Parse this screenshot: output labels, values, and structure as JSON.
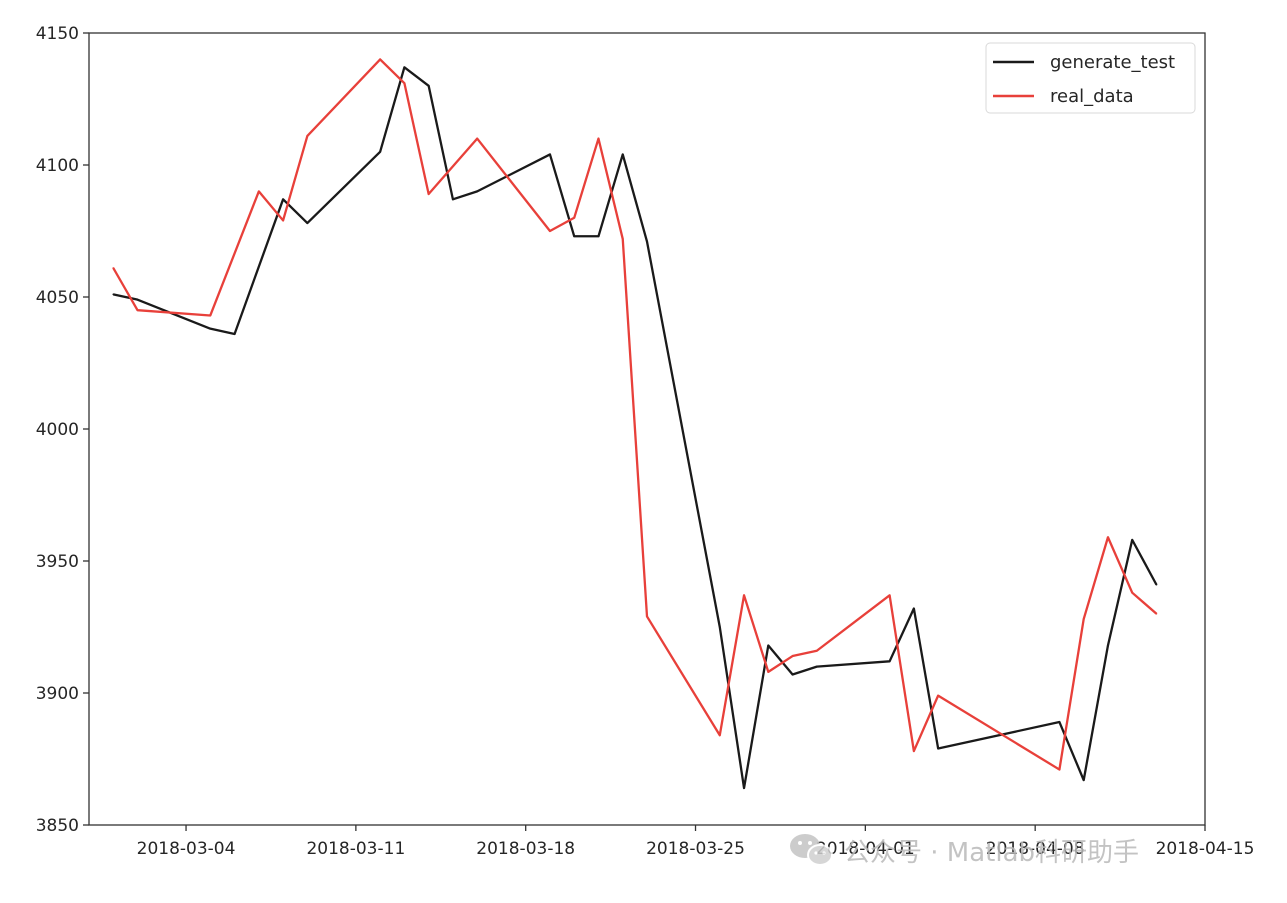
{
  "chart_data": {
    "type": "line",
    "x_type": "date",
    "xlim": [
      "2018-02-28",
      "2018-04-15"
    ],
    "ylim": [
      3850,
      4150
    ],
    "x_ticks": [
      "2018-03-04",
      "2018-03-11",
      "2018-03-18",
      "2018-03-25",
      "2018-04-01",
      "2018-04-08",
      "2018-04-15"
    ],
    "y_ticks": [
      3850,
      3900,
      3950,
      4000,
      4050,
      4100,
      4150
    ],
    "legend_position": "top-right",
    "grid": false,
    "title": "",
    "xlabel": "",
    "ylabel": "",
    "series": [
      {
        "name": "generate_test",
        "color": "#1a1a1a",
        "x": [
          "2018-03-01",
          "2018-03-02",
          "2018-03-05",
          "2018-03-06",
          "2018-03-08",
          "2018-03-09",
          "2018-03-12",
          "2018-03-13",
          "2018-03-14",
          "2018-03-15",
          "2018-03-16",
          "2018-03-19",
          "2018-03-20",
          "2018-03-21",
          "2018-03-22",
          "2018-03-23",
          "2018-03-26",
          "2018-03-27",
          "2018-03-28",
          "2018-03-29",
          "2018-03-30",
          "2018-04-02",
          "2018-04-03",
          "2018-04-04",
          "2018-04-09",
          "2018-04-10",
          "2018-04-11",
          "2018-04-12",
          "2018-04-13"
        ],
        "values": [
          4051,
          4049,
          4038,
          4036,
          4087,
          4078,
          4105,
          4137,
          4130,
          4087,
          4090,
          4104,
          4073,
          4073,
          4104,
          4071,
          3925,
          3864,
          3918,
          3907,
          3910,
          3912,
          3932,
          3879,
          3889,
          3867,
          3918,
          3958,
          3941
        ]
      },
      {
        "name": "real_data",
        "color": "#e8403a",
        "x": [
          "2018-03-01",
          "2018-03-02",
          "2018-03-05",
          "2018-03-07",
          "2018-03-08",
          "2018-03-09",
          "2018-03-12",
          "2018-03-13",
          "2018-03-14",
          "2018-03-16",
          "2018-03-19",
          "2018-03-20",
          "2018-03-21",
          "2018-03-22",
          "2018-03-23",
          "2018-03-26",
          "2018-03-27",
          "2018-03-28",
          "2018-03-29",
          "2018-03-30",
          "2018-04-02",
          "2018-04-03",
          "2018-04-04",
          "2018-04-09",
          "2018-04-10",
          "2018-04-11",
          "2018-04-12",
          "2018-04-13"
        ],
        "values": [
          4061,
          4045,
          4043,
          4090,
          4079,
          4111,
          4140,
          4131,
          4089,
          4110,
          4075,
          4080,
          4110,
          4072,
          3929,
          3884,
          3937,
          3908,
          3914,
          3916,
          3937,
          3878,
          3899,
          3871,
          3928,
          3959,
          3938,
          3930
        ]
      }
    ]
  },
  "watermark": {
    "icon": "wechat-icon",
    "text": "公众号 · Matlab科研助手"
  }
}
